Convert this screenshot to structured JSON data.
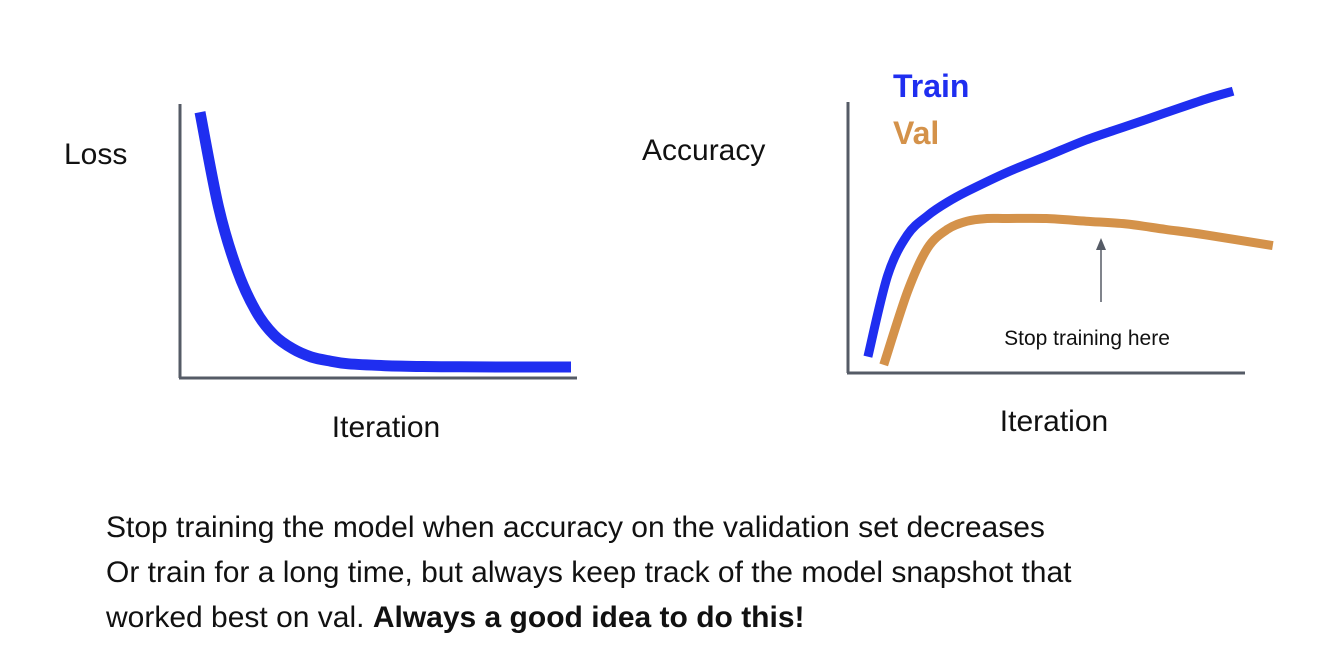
{
  "chart_data": [
    {
      "type": "line",
      "title": "",
      "xlabel": "Iteration",
      "ylabel": "Loss",
      "series": [
        {
          "name": "",
          "color": "#1f2ef0",
          "x": [
            0.0,
            0.05,
            0.1,
            0.15,
            0.2,
            0.25,
            0.3,
            0.35,
            0.4,
            0.5,
            0.6,
            0.7,
            0.8,
            0.9,
            1.0
          ],
          "y": [
            0.97,
            0.62,
            0.39,
            0.24,
            0.15,
            0.1,
            0.07,
            0.055,
            0.045,
            0.038,
            0.035,
            0.034,
            0.033,
            0.033,
            0.033
          ]
        }
      ]
    },
    {
      "type": "line",
      "title": "",
      "xlabel": "Iteration",
      "ylabel": "Accuracy",
      "legend": [
        {
          "label": "Train",
          "color": "#1f2ef0"
        },
        {
          "label": "Val",
          "color": "#d4924a"
        }
      ],
      "series": [
        {
          "name": "Train",
          "color": "#1f2ef0",
          "x": [
            0.05,
            0.1,
            0.15,
            0.2,
            0.25,
            0.3,
            0.4,
            0.5,
            0.6,
            0.7,
            0.8,
            0.9,
            0.97
          ],
          "y": [
            0.06,
            0.36,
            0.51,
            0.58,
            0.63,
            0.67,
            0.74,
            0.8,
            0.86,
            0.91,
            0.96,
            1.01,
            1.04
          ]
        },
        {
          "name": "Val",
          "color": "#d4924a",
          "x": [
            0.09,
            0.15,
            0.2,
            0.25,
            0.3,
            0.35,
            0.4,
            0.5,
            0.6,
            0.7,
            0.8,
            0.9,
            1.07
          ],
          "y": [
            0.03,
            0.3,
            0.46,
            0.53,
            0.56,
            0.57,
            0.57,
            0.57,
            0.56,
            0.55,
            0.53,
            0.51,
            0.47
          ]
        }
      ],
      "annotation": {
        "text": "Stop training here",
        "x": 0.65,
        "y": 0.48
      }
    }
  ],
  "caption": {
    "line1": "Stop training the model when accuracy on the validation set decreases",
    "line2": "Or train for a long time, but always keep track of the model snapshot that",
    "line3_normal": "worked best on val. ",
    "line3_bold": "Always a good idea to do this!"
  }
}
